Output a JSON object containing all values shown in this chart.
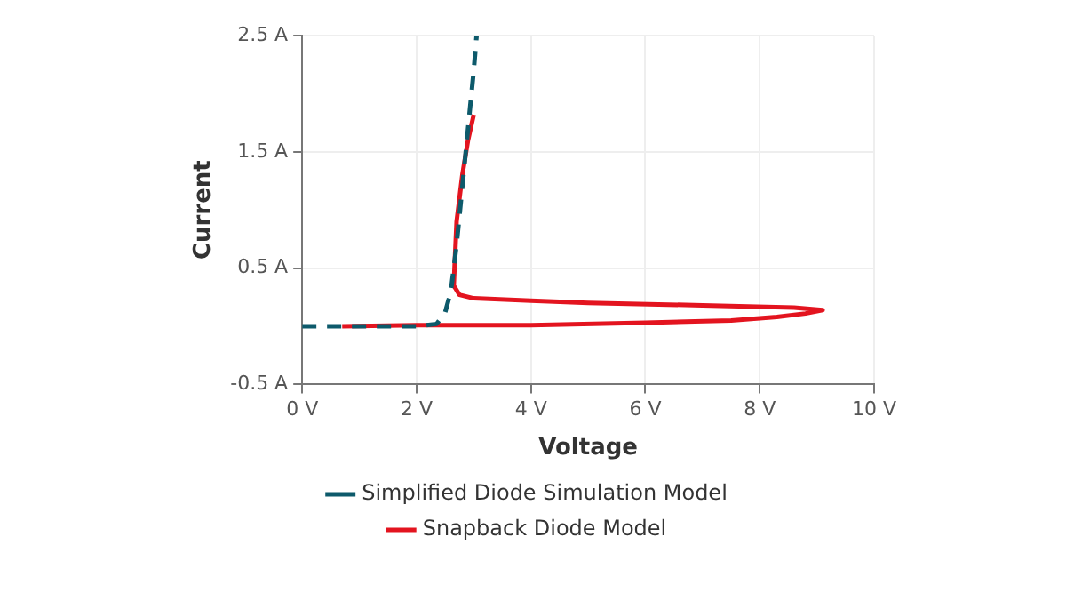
{
  "chart_data": {
    "type": "line",
    "xlabel": "Voltage",
    "ylabel": "Current",
    "xlim": [
      0,
      10
    ],
    "ylim": [
      -0.5,
      2.5
    ],
    "xticks": [
      {
        "value": 0,
        "label": "0 V"
      },
      {
        "value": 2,
        "label": "2 V"
      },
      {
        "value": 4,
        "label": "4 V"
      },
      {
        "value": 6,
        "label": "6 V"
      },
      {
        "value": 8,
        "label": "8 V"
      },
      {
        "value": 10,
        "label": "10 V"
      }
    ],
    "yticks": [
      {
        "value": -0.5,
        "label": "-0.5 A"
      },
      {
        "value": 0.5,
        "label": "0.5 A"
      },
      {
        "value": 1.5,
        "label": "1.5 A"
      },
      {
        "value": 2.5,
        "label": "2.5 A"
      }
    ],
    "grid": true,
    "legend": "bottom",
    "marker": "none",
    "series": [
      {
        "name": "Simplified Diode Simulation Model",
        "color": "#0d5a6b",
        "line_style": "dashed",
        "x": [
          0,
          1,
          2,
          2.35,
          2.5,
          2.6,
          2.7,
          2.8,
          2.9,
          3.0,
          3.05
        ],
        "values": [
          0,
          0,
          0,
          0.02,
          0.12,
          0.3,
          0.7,
          1.2,
          1.7,
          2.2,
          2.5
        ]
      },
      {
        "name": "Snapback Diode Model",
        "color": "#e3141f",
        "line_style": "solid",
        "x": [
          0.7,
          2,
          4,
          6,
          7.5,
          8.3,
          8.8,
          9.1,
          8.6,
          7,
          5,
          4,
          3,
          2.75,
          2.65,
          2.7,
          2.8,
          2.9,
          3.0
        ],
        "values": [
          0,
          0.01,
          0.01,
          0.03,
          0.05,
          0.08,
          0.11,
          0.14,
          0.16,
          0.18,
          0.2,
          0.22,
          0.24,
          0.27,
          0.35,
          0.9,
          1.3,
          1.6,
          1.82
        ]
      }
    ]
  }
}
